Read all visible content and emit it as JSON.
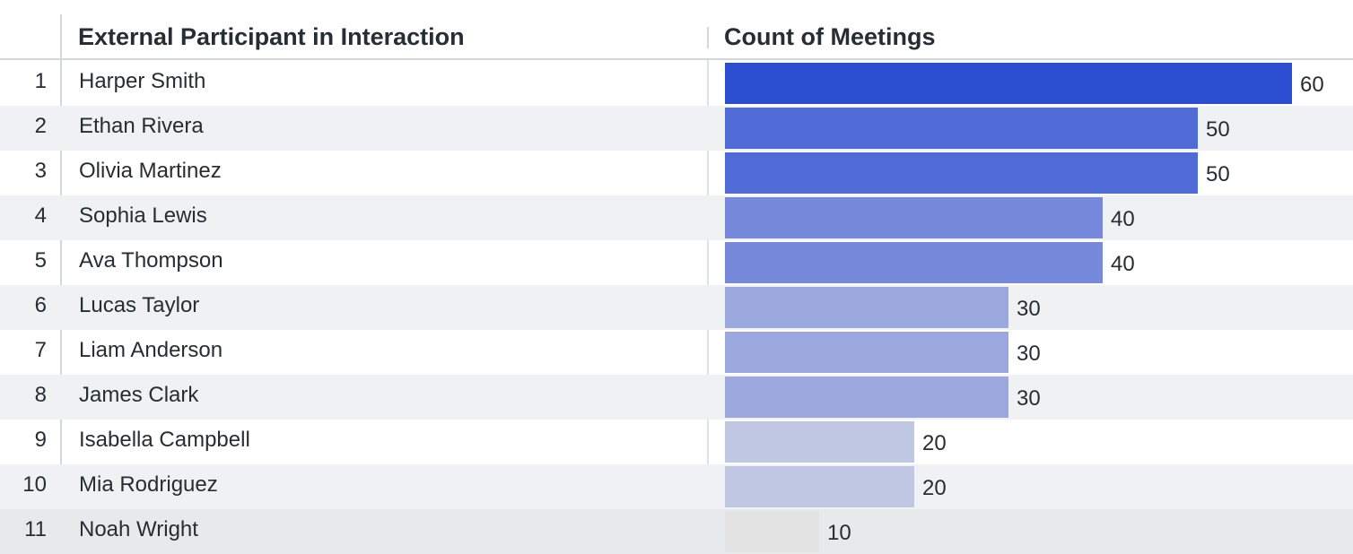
{
  "columns": {
    "participant": "External Participant in Interaction",
    "count": "Count of Meetings"
  },
  "rows": [
    {
      "index": "1",
      "name": "Harper Smith",
      "value": 60
    },
    {
      "index": "2",
      "name": "Ethan Rivera",
      "value": 50
    },
    {
      "index": "3",
      "name": "Olivia Martinez",
      "value": 50
    },
    {
      "index": "4",
      "name": "Sophia Lewis",
      "value": 40
    },
    {
      "index": "5",
      "name": "Ava Thompson",
      "value": 40
    },
    {
      "index": "6",
      "name": "Lucas Taylor",
      "value": 30
    },
    {
      "index": "7",
      "name": "Liam Anderson",
      "value": 30
    },
    {
      "index": "8",
      "name": "James Clark",
      "value": 30
    },
    {
      "index": "9",
      "name": "Isabella Campbell",
      "value": 20
    },
    {
      "index": "10",
      "name": "Mia Rodriguez",
      "value": 20
    },
    {
      "index": "11",
      "name": "Noah Wright",
      "value": 10
    }
  ],
  "bar_colors": {
    "60": "#2a4ecf",
    "50": "#4e6bd6",
    "40": "#7689da",
    "30": "#9ba8de",
    "20": "#c0c7e2",
    "10": "#e4e3e3"
  }
}
